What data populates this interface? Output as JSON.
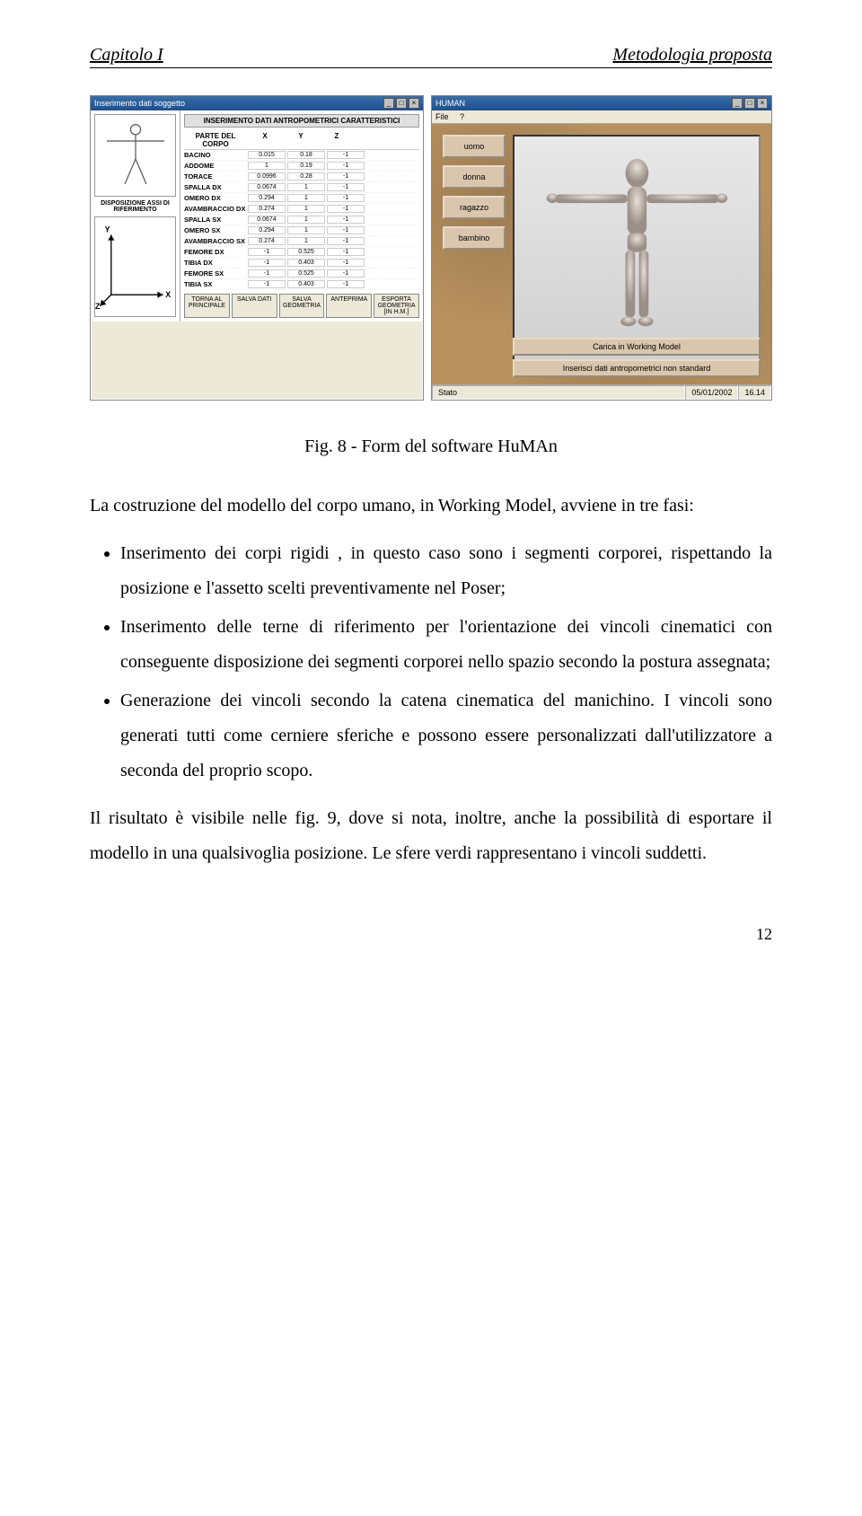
{
  "header": {
    "left": "Capitolo I",
    "right": "Metodologia proposta"
  },
  "leftWin": {
    "title": "Inserimento dati soggetto",
    "sideLabel1": "",
    "sideLabel2": "DISPOSIZIONE ASSI DI RIFERIMENTO",
    "panelTitle": "INSERIMENTO DATI ANTROPOMETRICI CARATTERISTICI",
    "columns": [
      "PARTE DEL CORPO",
      "X",
      "Y",
      "Z"
    ],
    "rows": [
      {
        "label": "BACINO",
        "x": "0.015",
        "y": "0.18",
        "z": "-1"
      },
      {
        "label": "ADDOME",
        "x": "1",
        "y": "0.19",
        "z": "-1"
      },
      {
        "label": "TORACE",
        "x": "0.0996",
        "y": "0.28",
        "z": "-1"
      },
      {
        "label": "SPALLA DX",
        "x": "0.0674",
        "y": "1",
        "z": "-1"
      },
      {
        "label": "OMERO DX",
        "x": "0.294",
        "y": "1",
        "z": "-1"
      },
      {
        "label": "AVAMBRACCIO DX",
        "x": "0.274",
        "y": "1",
        "z": "-1"
      },
      {
        "label": "SPALLA SX",
        "x": "0.0674",
        "y": "1",
        "z": "-1"
      },
      {
        "label": "OMERO SX",
        "x": "0.294",
        "y": "1",
        "z": "-1"
      },
      {
        "label": "AVAMBRACCIO SX",
        "x": "0.274",
        "y": "1",
        "z": "-1"
      },
      {
        "label": "FEMORE DX",
        "x": "-1",
        "y": "0.525",
        "z": "-1"
      },
      {
        "label": "TIBIA DX",
        "x": "-1",
        "y": "0.403",
        "z": "-1"
      },
      {
        "label": "FEMORE SX",
        "x": "-1",
        "y": "0.525",
        "z": "-1"
      },
      {
        "label": "TIBIA SX",
        "x": "-1",
        "y": "0.403",
        "z": "-1"
      }
    ],
    "buttons": [
      "TORNA AL PRINCIPALE",
      "SALVA DATI",
      "SALVA GEOMETRIA",
      "ANTEPRIMA",
      "ESPORTA GEOMETRIA [IN H.M.]"
    ]
  },
  "rightWin": {
    "title": "HUMAN",
    "menu": [
      "File",
      "?"
    ],
    "options": [
      "uomo",
      "donna",
      "ragazzo",
      "bambino"
    ],
    "buttons": [
      "Carica in Working Model",
      "Inserisci dati antropometrici non standard"
    ],
    "status": {
      "label": "Stato",
      "date": "05/01/2002",
      "time": "16.14"
    }
  },
  "caption": "Fig. 8 - Form del software HuMAn",
  "intro": "La costruzione del modello del corpo umano, in Working Model, avviene in tre fasi:",
  "bullets": [
    "Inserimento dei corpi rigidi , in questo caso sono i segmenti corporei, rispettando la posizione e l'assetto scelti preventivamente nel Poser;",
    "Inserimento delle terne di riferimento per l'orientazione dei vincoli cinematici con conseguente disposizione dei segmenti corporei nello spazio secondo la postura assegnata;",
    "Generazione dei vincoli secondo la catena cinematica del manichino. I vincoli sono generati tutti come cerniere sferiche e possono essere personalizzati dall'utilizzatore a seconda del proprio scopo."
  ],
  "closing": "Il risultato è visibile nelle fig. 9, dove si nota, inoltre,  anche la possibilità di esportare il modello in una qualsivoglia posizione. Le sfere verdi rappresentano i vincoli suddetti.",
  "pageNumber": "12",
  "colors": {
    "titlebar": "#1b4f91",
    "parchment": "#b8915f",
    "pill": "#d9c6ad",
    "winbg": "#ece9d8",
    "modelbg": "#dcdcdc"
  }
}
